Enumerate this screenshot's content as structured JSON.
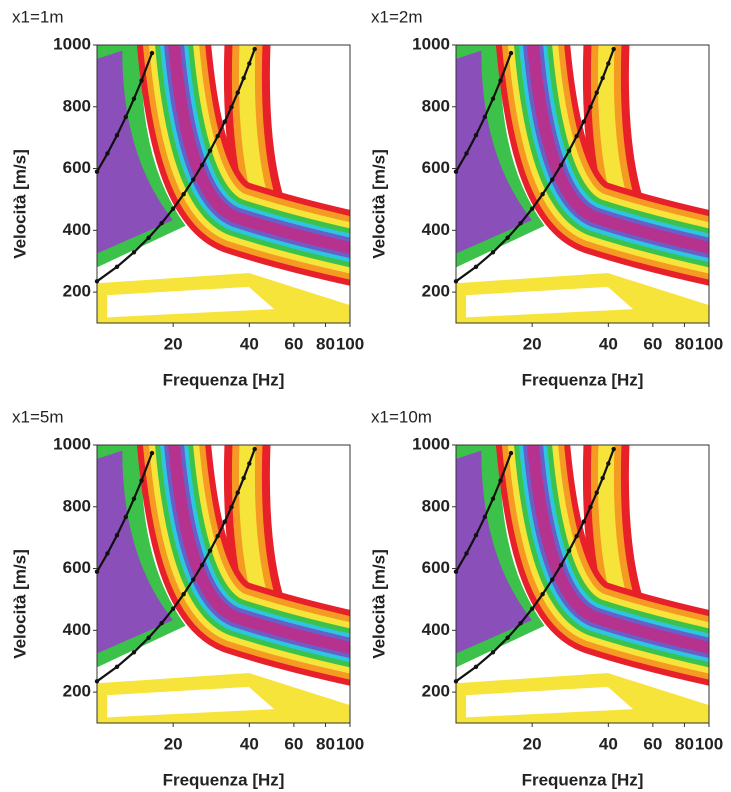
{
  "chart_data": [
    {
      "type": "line",
      "title": "x1=1m",
      "x_label": "Frequenza [Hz]",
      "y_label": "Velocità [m/s]",
      "log_x": true,
      "xlim": [
        10,
        100
      ],
      "xticks": [
        20,
        40,
        60,
        80,
        100
      ],
      "ylim": [
        100,
        1000
      ],
      "yticks": [
        200,
        400,
        600,
        800,
        1000
      ],
      "series": [
        {
          "color": "#111111",
          "x": [
            10,
            11,
            12,
            13,
            14,
            15,
            16.5
          ],
          "values": [
            590,
            649,
            708,
            767,
            826,
            885,
            974
          ]
        },
        {
          "color": "#111111",
          "x": [
            10,
            12,
            14,
            16,
            18,
            20,
            22,
            24,
            26,
            28,
            30,
            32,
            34,
            36,
            38,
            40,
            42
          ],
          "values": [
            235,
            282,
            329,
            376,
            423,
            470,
            517,
            564,
            611,
            658,
            705,
            752,
            799,
            846,
            893,
            940,
            987
          ]
        }
      ]
    },
    {
      "type": "line",
      "title": "x1=2m",
      "x_label": "Frequenza [Hz]",
      "y_label": "Velocità [m/s]",
      "log_x": true,
      "xlim": [
        10,
        100
      ],
      "xticks": [
        20,
        40,
        60,
        80,
        100
      ],
      "ylim": [
        100,
        1000
      ],
      "yticks": [
        200,
        400,
        600,
        800,
        1000
      ],
      "series": [
        {
          "color": "#111111",
          "x": [
            10,
            11,
            12,
            13,
            14,
            15,
            16.5
          ],
          "values": [
            590,
            649,
            708,
            767,
            826,
            885,
            974
          ]
        },
        {
          "color": "#111111",
          "x": [
            10,
            12,
            14,
            16,
            18,
            20,
            22,
            24,
            26,
            28,
            30,
            32,
            34,
            36,
            38,
            40,
            42
          ],
          "values": [
            235,
            282,
            329,
            376,
            423,
            470,
            517,
            564,
            611,
            658,
            705,
            752,
            799,
            846,
            893,
            940,
            987
          ]
        }
      ]
    },
    {
      "type": "line",
      "title": "x1=5m",
      "x_label": "Frequenza [Hz]",
      "y_label": "Velocità [m/s]",
      "log_x": true,
      "xlim": [
        10,
        100
      ],
      "xticks": [
        20,
        40,
        60,
        80,
        100
      ],
      "ylim": [
        100,
        1000
      ],
      "yticks": [
        200,
        400,
        600,
        800,
        1000
      ],
      "series": [
        {
          "color": "#111111",
          "x": [
            10,
            11,
            12,
            13,
            14,
            15,
            16.5
          ],
          "values": [
            590,
            649,
            708,
            767,
            826,
            885,
            974
          ]
        },
        {
          "color": "#111111",
          "x": [
            10,
            12,
            14,
            16,
            18,
            20,
            22,
            24,
            26,
            28,
            30,
            32,
            34,
            36,
            38,
            40,
            42
          ],
          "values": [
            235,
            282,
            329,
            376,
            423,
            470,
            517,
            564,
            611,
            658,
            705,
            752,
            799,
            846,
            893,
            940,
            987
          ]
        }
      ]
    },
    {
      "type": "line",
      "title": "x1=10m",
      "x_label": "Frequenza [Hz]",
      "y_label": "Velocità [m/s]",
      "log_x": true,
      "xlim": [
        10,
        100
      ],
      "xticks": [
        20,
        40,
        60,
        80,
        100
      ],
      "ylim": [
        100,
        1000
      ],
      "yticks": [
        200,
        400,
        600,
        800,
        1000
      ],
      "series": [
        {
          "color": "#111111",
          "x": [
            10,
            11,
            12,
            13,
            14,
            15,
            16.5
          ],
          "values": [
            590,
            649,
            708,
            767,
            826,
            885,
            974
          ]
        },
        {
          "color": "#111111",
          "x": [
            10,
            12,
            14,
            16,
            18,
            20,
            22,
            24,
            26,
            28,
            30,
            32,
            34,
            36,
            38,
            40,
            42
          ],
          "values": [
            235,
            282,
            329,
            376,
            423,
            470,
            517,
            564,
            611,
            658,
            705,
            752,
            799,
            846,
            893,
            940,
            987
          ]
        }
      ]
    }
  ]
}
